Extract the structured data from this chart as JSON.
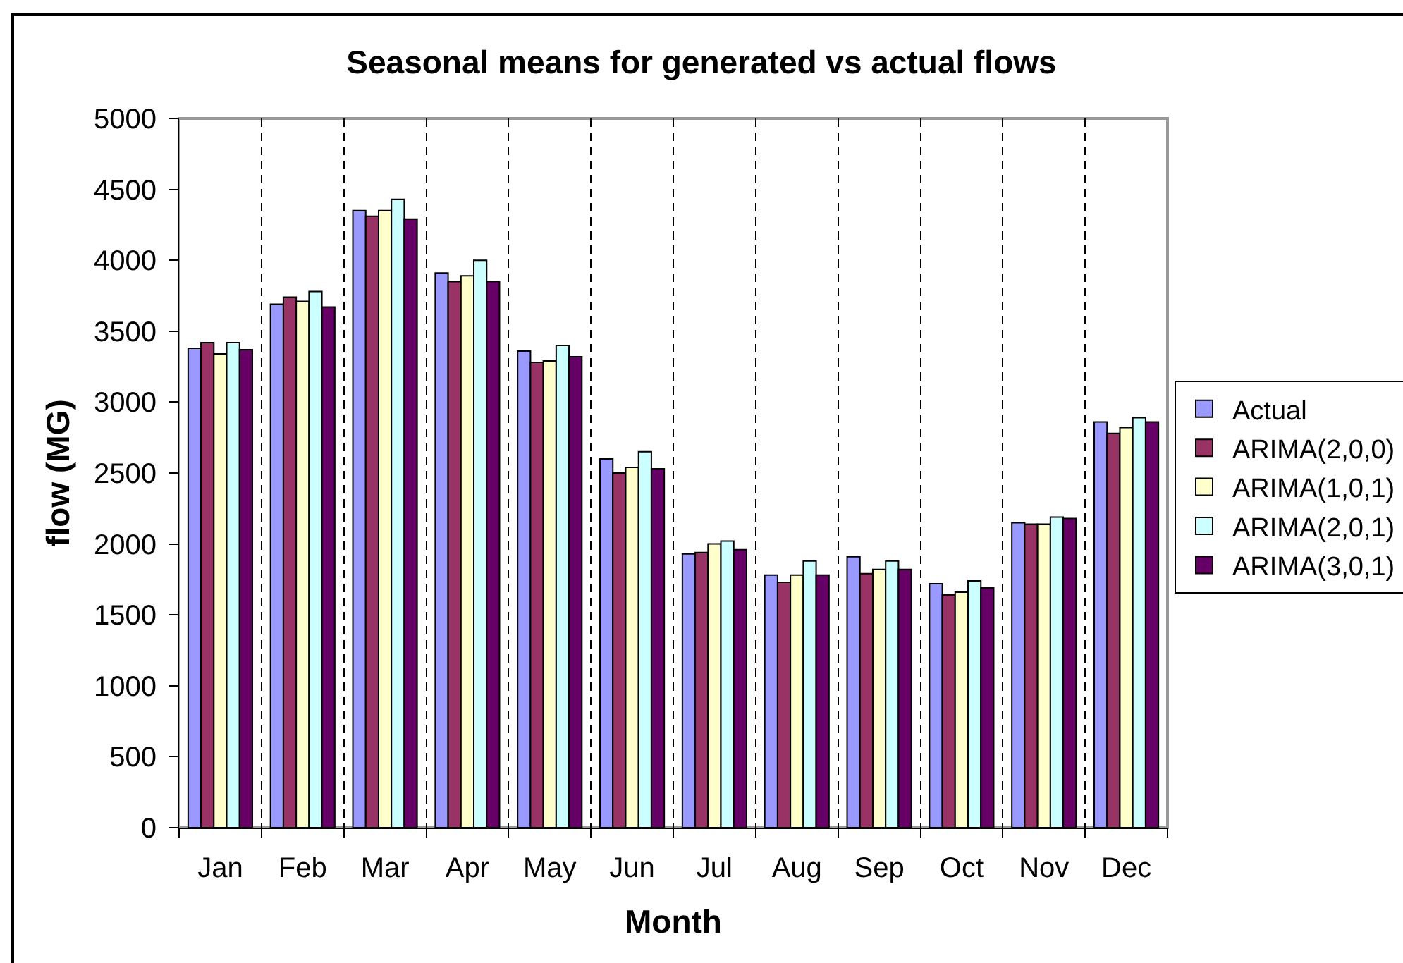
{
  "chart_data": {
    "type": "bar",
    "title": "Seasonal means for generated vs actual flows",
    "xlabel": "Month",
    "ylabel": "flow (MG)",
    "categories": [
      "Jan",
      "Feb",
      "Mar",
      "Apr",
      "May",
      "Jun",
      "Jul",
      "Aug",
      "Sep",
      "Oct",
      "Nov",
      "Dec"
    ],
    "series": [
      {
        "name": "Actual",
        "color": "#9999ff",
        "values": [
          3380,
          3690,
          4350,
          3910,
          3360,
          2600,
          1930,
          1780,
          1910,
          1720,
          2150,
          2860
        ]
      },
      {
        "name": "ARIMA(2,0,0)",
        "color": "#993366",
        "values": [
          3420,
          3740,
          4310,
          3850,
          3280,
          2500,
          1940,
          1730,
          1790,
          1640,
          2140,
          2780
        ]
      },
      {
        "name": "ARIMA(1,0,1)",
        "color": "#ffffcc",
        "values": [
          3340,
          3710,
          4350,
          3890,
          3290,
          2540,
          2000,
          1780,
          1820,
          1660,
          2140,
          2820
        ]
      },
      {
        "name": "ARIMA(2,0,1)",
        "color": "#ccffff",
        "values": [
          3420,
          3780,
          4430,
          4000,
          3400,
          2650,
          2020,
          1880,
          1880,
          1740,
          2190,
          2890
        ]
      },
      {
        "name": "ARIMA(3,0,1)",
        "color": "#660066",
        "values": [
          3370,
          3670,
          4290,
          3850,
          3320,
          2530,
          1960,
          1780,
          1820,
          1690,
          2180,
          2860
        ]
      }
    ],
    "ylim": [
      0,
      5000
    ],
    "yticks": [
      0,
      500,
      1000,
      1500,
      2000,
      2500,
      3000,
      3500,
      4000,
      4500,
      5000
    ],
    "grid": "x",
    "legend": "right"
  }
}
